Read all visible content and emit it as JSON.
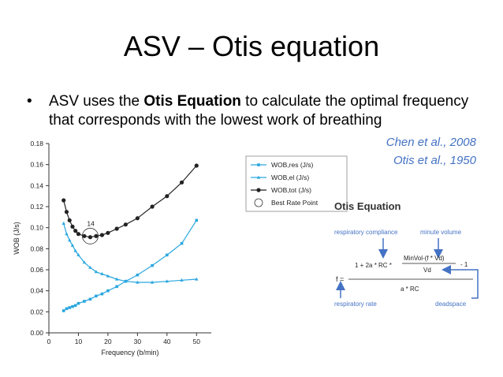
{
  "slide": {
    "title": "ASV – Otis equation",
    "bullet_symbol": "•",
    "bullet_pre": "ASV uses the ",
    "bullet_bold": "Otis Equation",
    "bullet_post": " to calculate the optimal frequency that corresponds with the lowest work of breathing",
    "citations": [
      "Chen et al., 2008",
      "Otis et al., 1950"
    ]
  },
  "chart_data": {
    "type": "line",
    "xlabel": "Frequency (b/min)",
    "ylabel": "WOB (J/s)",
    "xlim": [
      0,
      55
    ],
    "ylim": [
      0,
      0.18
    ],
    "xticks": [
      0,
      10,
      20,
      30,
      40,
      50
    ],
    "yticks": [
      0.0,
      0.02,
      0.04,
      0.06,
      0.08,
      0.1,
      0.12,
      0.14,
      0.16,
      0.18
    ],
    "ytick_labels": [
      "0.00",
      "0.02",
      "0.04",
      "0.06",
      "0.08",
      "0.10",
      "0.12",
      "0.14",
      "0.16",
      "0.18"
    ],
    "legend_position": "top-right",
    "annotation": {
      "label": "14",
      "x": 14,
      "y": 0.092
    },
    "series": [
      {
        "name": "WOB,res (J/s)",
        "color": "#2aa7df",
        "marker": "square",
        "x": [
          5,
          6,
          7,
          8,
          9,
          10,
          12,
          14,
          16,
          18,
          20,
          23,
          26,
          30,
          35,
          40,
          45,
          50
        ],
        "y": [
          0.021,
          0.023,
          0.024,
          0.025,
          0.026,
          0.028,
          0.03,
          0.032,
          0.035,
          0.037,
          0.04,
          0.044,
          0.049,
          0.055,
          0.064,
          0.074,
          0.085,
          0.107
        ]
      },
      {
        "name": "WOB,el (J/s)",
        "color": "#2aa7df",
        "marker": "triangle",
        "x": [
          5,
          6,
          7,
          8,
          9,
          10,
          12,
          14,
          16,
          18,
          20,
          23,
          26,
          30,
          35,
          40,
          45,
          50
        ],
        "y": [
          0.104,
          0.094,
          0.088,
          0.083,
          0.078,
          0.074,
          0.067,
          0.062,
          0.058,
          0.056,
          0.054,
          0.051,
          0.049,
          0.048,
          0.048,
          0.049,
          0.05,
          0.051
        ]
      },
      {
        "name": "WOB,tot (J/s)",
        "color": "#222222",
        "marker": "circle",
        "x": [
          5,
          6,
          7,
          8,
          9,
          10,
          12,
          14,
          16,
          18,
          20,
          23,
          26,
          30,
          35,
          40,
          45,
          50
        ],
        "y": [
          0.126,
          0.115,
          0.107,
          0.101,
          0.097,
          0.094,
          0.092,
          0.091,
          0.092,
          0.093,
          0.095,
          0.099,
          0.103,
          0.109,
          0.12,
          0.13,
          0.143,
          0.159
        ]
      },
      {
        "name": "Best Rate Point",
        "marker": "open-circle-legend"
      }
    ]
  },
  "equation": {
    "title": "Otis Equation",
    "label_compliance": "respiratory compliance",
    "label_minvol": "minute volume",
    "label_rate": "respiratory rate",
    "label_deadspace": "deadspace",
    "f_eq": "f =",
    "numerator_left": "1 + 2a * RC *",
    "inner_num": "MinVol-(f * Vd)",
    "inner_den": "Vd",
    "minus_one": "- 1",
    "denominator": "a * RC"
  }
}
